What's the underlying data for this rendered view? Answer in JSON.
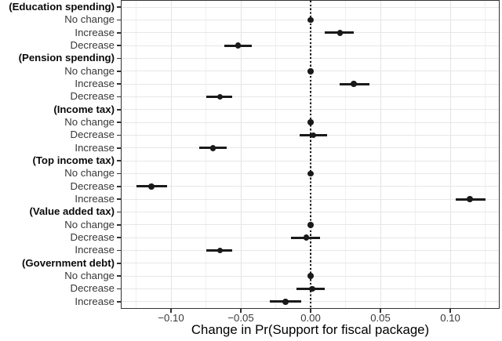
{
  "chart_data": {
    "type": "scatter",
    "subtype": "dot-whisker-coefficient-plot",
    "title": "",
    "xlabel": "Change in Pr(Support for fiscal package)",
    "ylabel": "",
    "xlim": [
      -0.1354,
      0.1348
    ],
    "x_major_ticks": [
      -0.1,
      -0.05,
      0.0,
      0.05,
      0.1
    ],
    "x_tick_labels": [
      "−0.10",
      "−0.05",
      "0.00",
      "0.05",
      "0.10"
    ],
    "x_minor_tick_step": 0.025,
    "grid": true,
    "legend": "none",
    "zero_reference_line": {
      "x": 0.0,
      "style": "dotted",
      "color": "#111111"
    },
    "rows": [
      {
        "label": "(Education spending)",
        "header": true,
        "estimate": null,
        "ci_low": null,
        "ci_high": null
      },
      {
        "label": "No change",
        "header": false,
        "estimate": 0.0,
        "ci_low": 0.0,
        "ci_high": 0.0
      },
      {
        "label": "Increase",
        "header": false,
        "estimate": 0.021,
        "ci_low": 0.01,
        "ci_high": 0.031
      },
      {
        "label": "Decrease",
        "header": false,
        "estimate": -0.052,
        "ci_low": -0.062,
        "ci_high": -0.042
      },
      {
        "label": "(Pension spending)",
        "header": true,
        "estimate": null,
        "ci_low": null,
        "ci_high": null
      },
      {
        "label": "No change",
        "header": false,
        "estimate": 0.0,
        "ci_low": 0.0,
        "ci_high": 0.0
      },
      {
        "label": "Increase",
        "header": false,
        "estimate": 0.031,
        "ci_low": 0.021,
        "ci_high": 0.042
      },
      {
        "label": "Decrease",
        "header": false,
        "estimate": -0.065,
        "ci_low": -0.075,
        "ci_high": -0.056
      },
      {
        "label": "(Income tax)",
        "header": true,
        "estimate": null,
        "ci_low": null,
        "ci_high": null
      },
      {
        "label": "No change",
        "header": false,
        "estimate": 0.0,
        "ci_low": 0.0,
        "ci_high": 0.0
      },
      {
        "label": "Decrease",
        "header": false,
        "estimate": 0.002,
        "ci_low": -0.008,
        "ci_high": 0.012
      },
      {
        "label": "Increase",
        "header": false,
        "estimate": -0.07,
        "ci_low": -0.08,
        "ci_high": -0.06
      },
      {
        "label": "(Top income tax)",
        "header": true,
        "estimate": null,
        "ci_low": null,
        "ci_high": null
      },
      {
        "label": "No change",
        "header": false,
        "estimate": 0.0,
        "ci_low": 0.0,
        "ci_high": 0.0
      },
      {
        "label": "Decrease",
        "header": false,
        "estimate": -0.114,
        "ci_low": -0.125,
        "ci_high": -0.103
      },
      {
        "label": "Increase",
        "header": false,
        "estimate": 0.114,
        "ci_low": 0.104,
        "ci_high": 0.125
      },
      {
        "label": "(Value added tax)",
        "header": true,
        "estimate": null,
        "ci_low": null,
        "ci_high": null
      },
      {
        "label": "No change",
        "header": false,
        "estimate": 0.0,
        "ci_low": 0.0,
        "ci_high": 0.0
      },
      {
        "label": "Decrease",
        "header": false,
        "estimate": -0.003,
        "ci_low": -0.014,
        "ci_high": 0.007
      },
      {
        "label": "Increase",
        "header": false,
        "estimate": -0.065,
        "ci_low": -0.075,
        "ci_high": -0.056
      },
      {
        "label": "(Government debt)",
        "header": true,
        "estimate": null,
        "ci_low": null,
        "ci_high": null
      },
      {
        "label": "No change",
        "header": false,
        "estimate": 0.0,
        "ci_low": 0.0,
        "ci_high": 0.0
      },
      {
        "label": "Decrease",
        "header": false,
        "estimate": 0.001,
        "ci_low": -0.01,
        "ci_high": 0.01
      },
      {
        "label": "Increase",
        "header": false,
        "estimate": -0.018,
        "ci_low": -0.029,
        "ci_high": -0.007
      }
    ],
    "colors": {
      "point": "#1a1a1a",
      "ci": "#1a1a1a",
      "grid_major": "#e3e3e3",
      "grid_minor": "#f0f0f0",
      "panel_border": "#333333",
      "background": "#ffffff",
      "axis_text": "#383838",
      "header_text": "#0a0a0a"
    }
  }
}
